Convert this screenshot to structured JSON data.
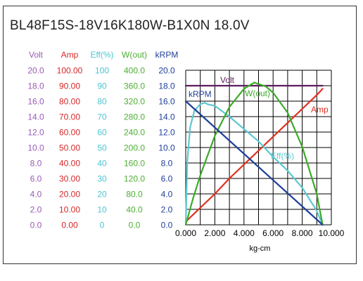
{
  "chart_data": {
    "type": "line",
    "title": "BL48F15S-18V16K180W-B1X0N   18.0V",
    "xlabel": "kg-cm",
    "xlim": [
      0,
      10
    ],
    "x_tick_labels": [
      "0.000",
      "2.000",
      "4.000",
      "6.000",
      "8.000",
      "10.000"
    ],
    "grid": true,
    "axes": [
      {
        "name": "Volt",
        "color": "#9b59b6",
        "lim": [
          0,
          20
        ],
        "ticks": [
          "0.0",
          "2.0",
          "4.0",
          "6.0",
          "8.0",
          "10.0",
          "12.0",
          "14.0",
          "16.0",
          "18.0",
          "20.0"
        ]
      },
      {
        "name": "Amp",
        "color": "#d62728",
        "lim": [
          0,
          100
        ],
        "ticks": [
          "0.00",
          "10.00",
          "20.00",
          "30.00",
          "40.00",
          "50.00",
          "60.00",
          "70.00",
          "80.00",
          "90.00",
          "100.00"
        ]
      },
      {
        "name": "Eff(%)",
        "color": "#4cc4d0",
        "lim": [
          0,
          100
        ],
        "ticks": [
          "0",
          "10",
          "20",
          "30",
          "40",
          "50",
          "60",
          "70",
          "80",
          "90",
          "100"
        ]
      },
      {
        "name": "W(out)",
        "color": "#4cae32",
        "lim": [
          0,
          400
        ],
        "ticks": [
          "0.0",
          "40.0",
          "80.0",
          "120.0",
          "160.0",
          "200.0",
          "240.0",
          "280.0",
          "320.0",
          "360.0",
          "400.0"
        ]
      },
      {
        "name": "kRPM",
        "color": "#1f3f99",
        "lim": [
          0,
          20
        ],
        "ticks": [
          "0.0",
          "2.0",
          "4.0",
          "6.0",
          "8.0",
          "10.0",
          "12.0",
          "14.0",
          "16.0",
          "18.0",
          "20.0"
        ]
      }
    ],
    "series": [
      {
        "name": "Volt",
        "axis": 0,
        "color": "#5b1f5b",
        "label": "Volt",
        "x": [
          0.0,
          9.4
        ],
        "y": [
          18.0,
          18.0
        ]
      },
      {
        "name": "Amp",
        "axis": 1,
        "color": "#e0301e",
        "label": "Amp",
        "x": [
          0.0,
          1.0,
          2.0,
          3.0,
          4.0,
          5.0,
          6.0,
          7.0,
          8.0,
          9.0,
          9.4
        ],
        "y": [
          2.0,
          11.0,
          20.0,
          30.0,
          39.0,
          48.0,
          57.0,
          66.0,
          75.0,
          84.0,
          88.0
        ]
      },
      {
        "name": "Eff(%)",
        "axis": 2,
        "color": "#5cc8d0",
        "label": "Eff(%)",
        "x": [
          0.0,
          0.1,
          0.3,
          0.6,
          1.0,
          1.3,
          1.5,
          2.0,
          3.0,
          4.0,
          5.0,
          6.0,
          7.0,
          8.0,
          9.0,
          9.4
        ],
        "y": [
          0.0,
          40.0,
          63.0,
          74.0,
          78.0,
          79.0,
          78.0,
          77.0,
          70.0,
          62.0,
          54.0,
          44.0,
          35.0,
          24.0,
          9.0,
          0.0
        ]
      },
      {
        "name": "W(out)",
        "axis": 3,
        "color": "#3caa28",
        "label": "W(out)",
        "x": [
          0.0,
          0.5,
          1.0,
          2.0,
          3.0,
          4.0,
          4.7,
          5.5,
          6.0,
          7.0,
          8.0,
          9.0,
          9.4
        ],
        "y": [
          0.0,
          68.0,
          128.0,
          230.0,
          305.0,
          352.0,
          368.0,
          358.0,
          342.0,
          290.0,
          202.0,
          80.0,
          0.0
        ]
      },
      {
        "name": "kRPM",
        "axis": 4,
        "color": "#1f3f99",
        "label": "kRPM",
        "x": [
          0.0,
          9.4
        ],
        "y": [
          16.0,
          0.0
        ]
      }
    ]
  }
}
